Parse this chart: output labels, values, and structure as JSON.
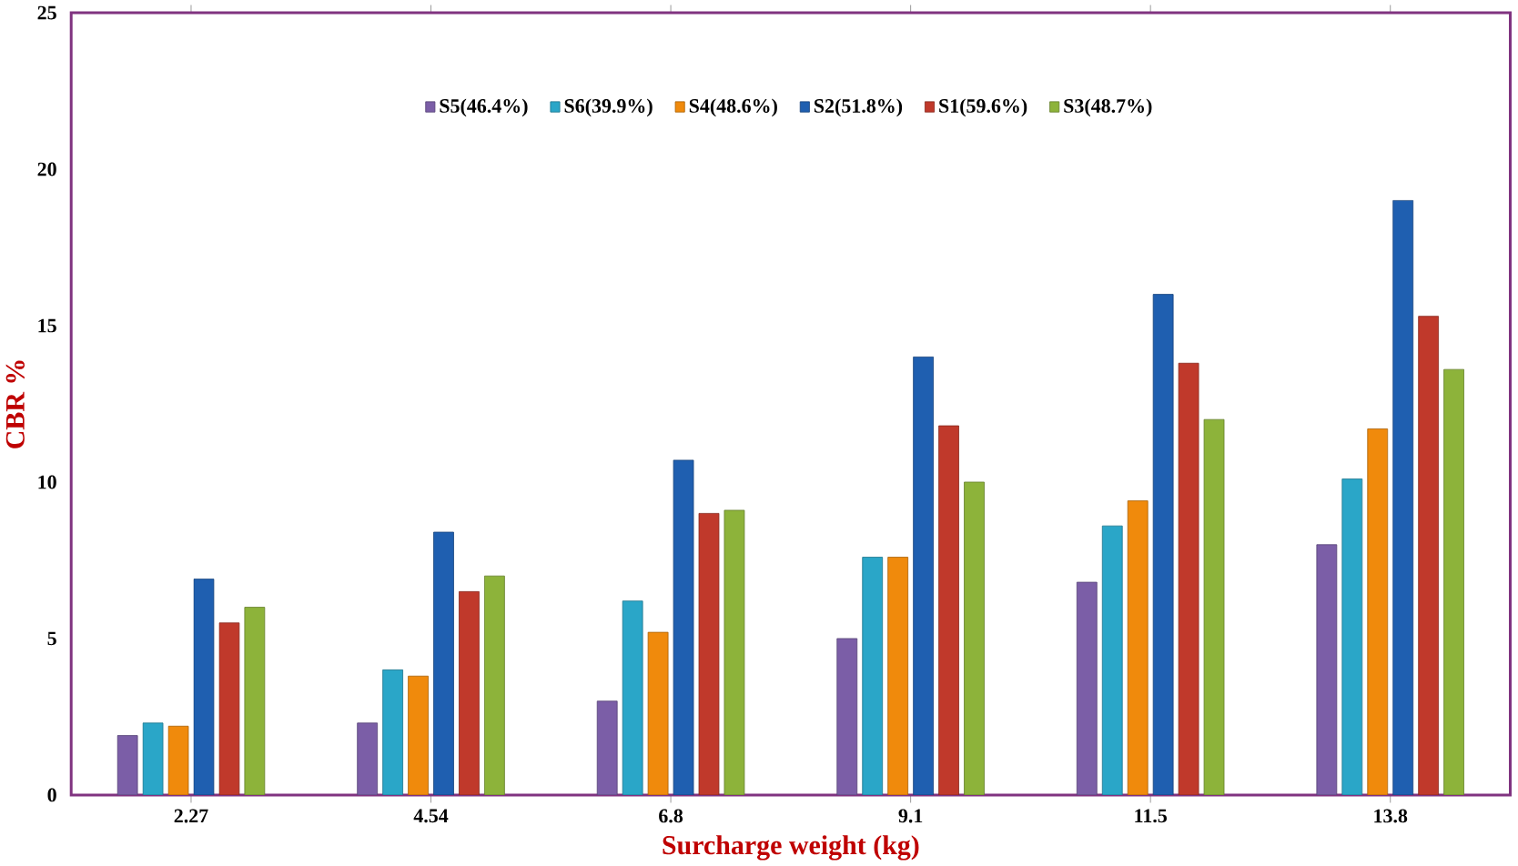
{
  "chart_data": {
    "type": "bar",
    "xlabel": "Surcharge weight (kg)",
    "ylabel": "CBR %",
    "categories": [
      "2.27",
      "4.54",
      "6.8",
      "9.1",
      "11.5",
      "13.8"
    ],
    "ylim": [
      0,
      25
    ],
    "yticks": [
      0,
      5,
      10,
      15,
      20,
      25
    ],
    "legend": "top",
    "grid": false,
    "series": [
      {
        "name": "S5(46.4%)",
        "color": "#7b5ea7",
        "values": [
          1.9,
          2.3,
          3.0,
          5.0,
          6.8,
          8.0
        ]
      },
      {
        "name": "S6(39.9%)",
        "color": "#2aa6c8",
        "values": [
          2.3,
          4.0,
          6.2,
          7.6,
          8.6,
          10.1
        ]
      },
      {
        "name": "S4(48.6%)",
        "color": "#f08a0c",
        "values": [
          2.2,
          3.8,
          5.2,
          7.6,
          9.4,
          11.7
        ]
      },
      {
        "name": "S2(51.8%)",
        "color": "#1f5fb0",
        "values": [
          6.9,
          8.4,
          10.7,
          14.0,
          16.0,
          19.0
        ]
      },
      {
        "name": "S1(59.6%)",
        "color": "#c0392b",
        "values": [
          5.5,
          6.5,
          9.0,
          11.8,
          13.8,
          15.3
        ]
      },
      {
        "name": "S3(48.7%)",
        "color": "#8db33a",
        "values": [
          6.0,
          7.0,
          9.1,
          10.0,
          12.0,
          13.6
        ]
      }
    ]
  }
}
